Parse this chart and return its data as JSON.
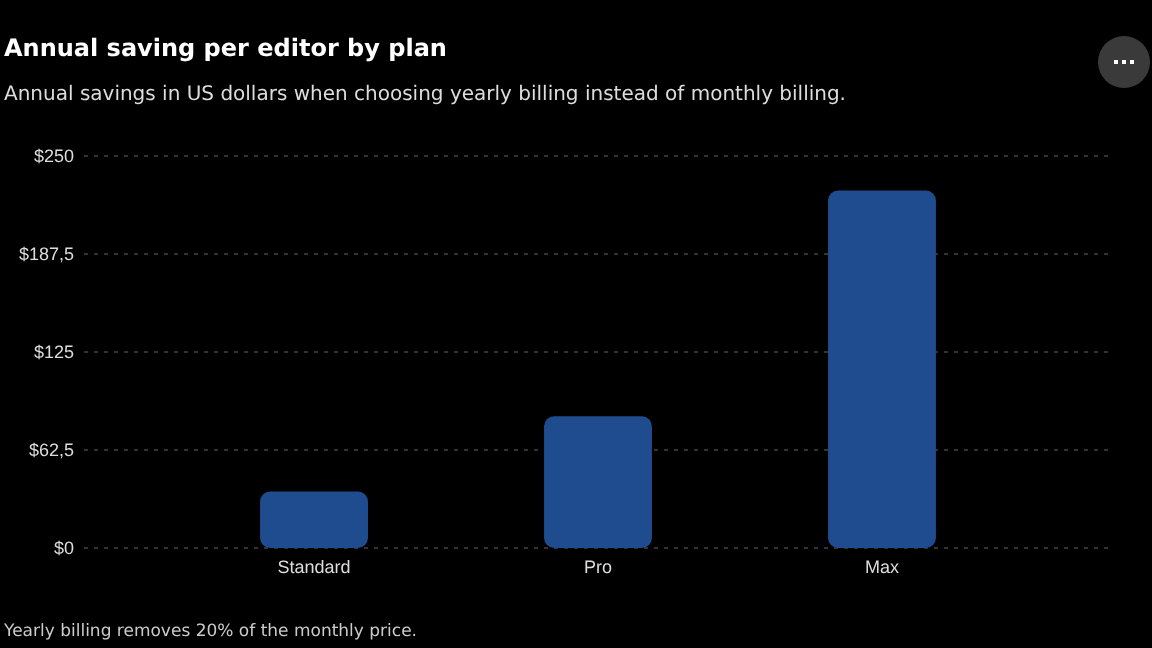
{
  "chart_data": {
    "type": "bar",
    "title": "Annual saving per editor by plan",
    "subtitle": "Annual savings in US dollars when choosing yearly billing instead of monthly billing.",
    "categories": [
      "Standard",
      "Pro",
      "Max"
    ],
    "values": [
      36,
      84,
      228
    ],
    "color": "#1f4b8f",
    "ylim": [
      0,
      250
    ],
    "yticks": [
      {
        "value": 0,
        "label": "$0"
      },
      {
        "value": 62.5,
        "label": "$62,5"
      },
      {
        "value": 125,
        "label": "$125"
      },
      {
        "value": 187.5,
        "label": "$187,5"
      },
      {
        "value": 250,
        "label": "$250"
      }
    ],
    "grid": "y",
    "annotations": [
      "Yearly billing removes 20% of the monthly price."
    ]
  }
}
